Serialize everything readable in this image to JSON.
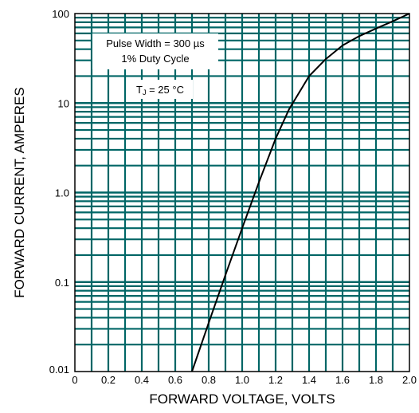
{
  "chart_data": {
    "type": "line",
    "xlabel": "FORWARD VOLTAGE, VOLTS",
    "ylabel": "FORWARD CURRENT, AMPERES",
    "xlim": [
      0,
      2.0
    ],
    "ylim": [
      0.01,
      100
    ],
    "y_scale": "log",
    "x_ticks": [
      "0",
      "0.2",
      "0.4",
      "0.6",
      "0.8",
      "1.0",
      "1.2",
      "1.4",
      "1.6",
      "1.8",
      "2.0"
    ],
    "y_ticks": [
      "0.01",
      "0.1",
      "1.0",
      "10",
      "100"
    ],
    "grid": true,
    "annotation_lines": [
      "Pulse Width = 300 µs",
      "1% Duty Cycle"
    ],
    "annotation_temp": {
      "prefix": "T",
      "subscript": "J",
      "suffix": " = 25 °C"
    },
    "series": [
      {
        "x": [
          0.7,
          0.8,
          0.9,
          1.0,
          1.1,
          1.2,
          1.28,
          1.4,
          1.5,
          1.6,
          1.7,
          1.8,
          1.9,
          2.0
        ],
        "y": [
          0.01,
          0.035,
          0.12,
          0.4,
          1.3,
          4.0,
          8.5,
          20,
          31,
          44,
          56,
          68,
          82,
          100
        ]
      }
    ],
    "colors": {
      "grid": "#006666",
      "curve": "#000000",
      "frame": "#000000"
    }
  }
}
